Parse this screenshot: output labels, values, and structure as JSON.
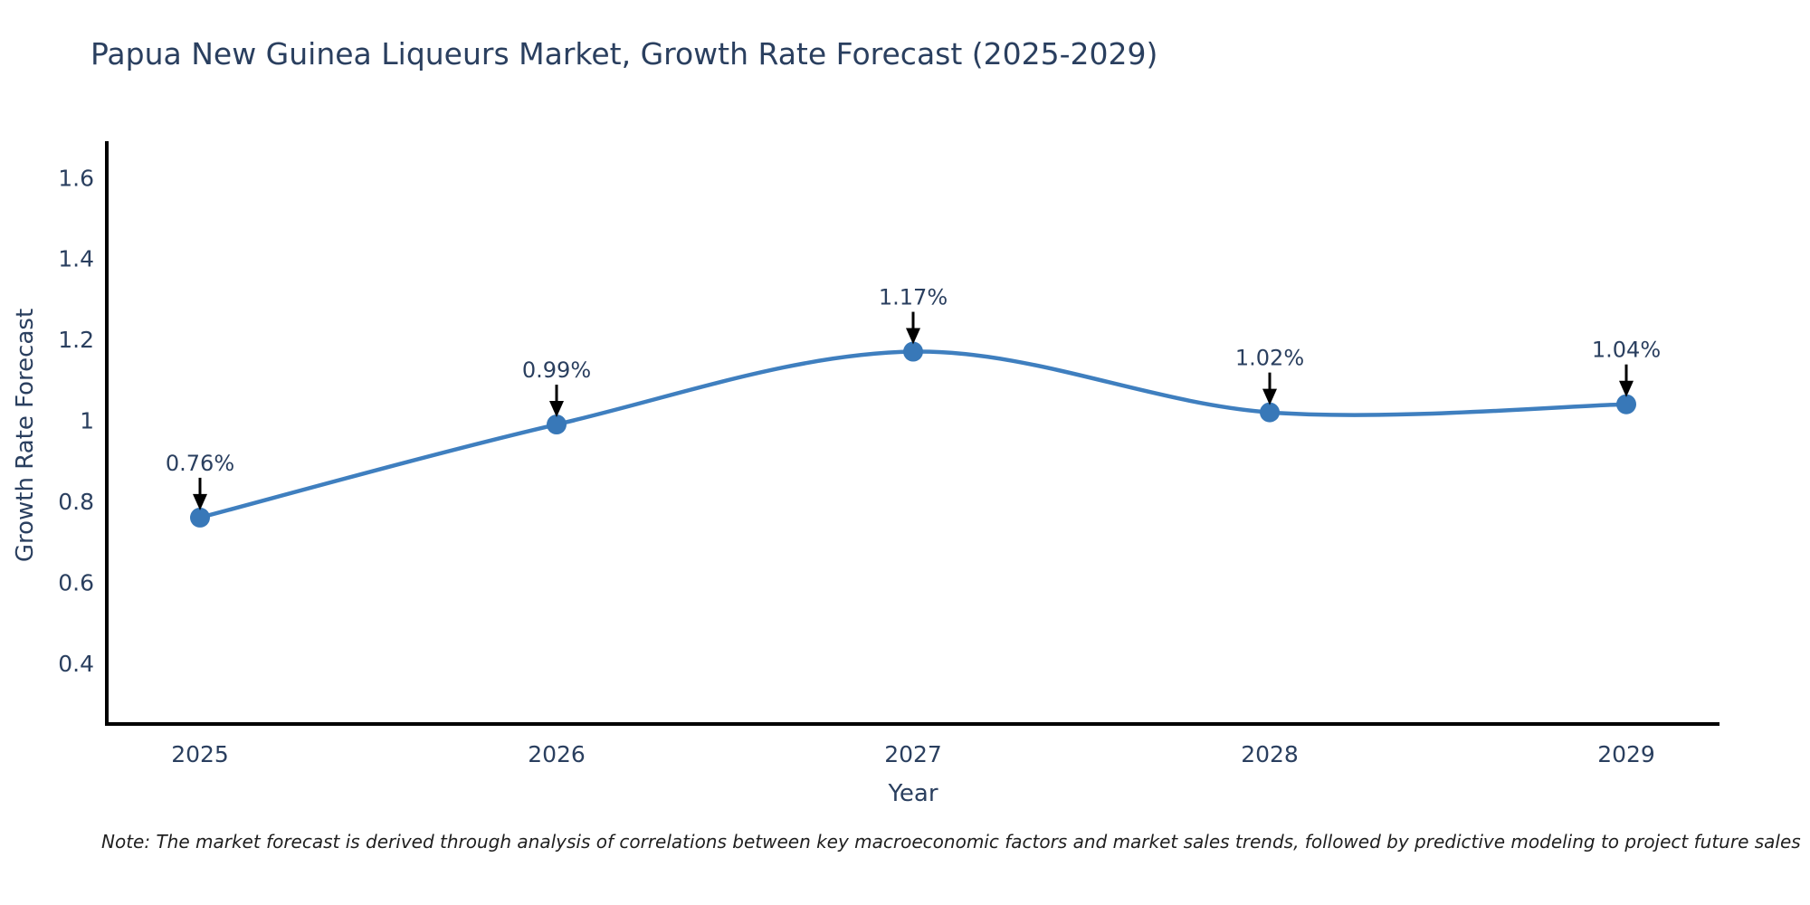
{
  "chart_data": {
    "type": "line",
    "title": "Papua New Guinea Liqueurs Market, Growth Rate Forecast (2025-2029)",
    "xlabel": "Year",
    "ylabel": "Growth Rate Forecast",
    "categories": [
      "2025",
      "2026",
      "2027",
      "2028",
      "2029"
    ],
    "series": [
      {
        "name": "Growth Rate Forecast",
        "values": [
          0.76,
          0.99,
          1.17,
          1.02,
          1.04
        ]
      }
    ],
    "point_labels": [
      "0.76%",
      "0.99%",
      "1.17%",
      "1.02%",
      "1.04%"
    ],
    "yticks": [
      "0.4",
      "0.6",
      "0.8",
      "1",
      "1.2",
      "1.4",
      "1.6"
    ],
    "ytick_values": [
      0.4,
      0.6,
      0.8,
      1.0,
      1.2,
      1.4,
      1.6
    ],
    "ylim": [
      0.25,
      1.69
    ],
    "grid": false,
    "legend_position": "none",
    "line_shape": "spline",
    "colors": {
      "line": "#3f7fbf",
      "marker": "#3878b8",
      "axis": "#000000",
      "text": "#2a3f5f",
      "annotation_text": "#2a3f5f",
      "annotation_arrow": "#000000",
      "background": "#ffffff"
    }
  },
  "note": {
    "text": "Note: The market forecast is derived through analysis of correlations between key macroeconomic factors and market sales trends, followed by predictive modeling to project future sales"
  }
}
